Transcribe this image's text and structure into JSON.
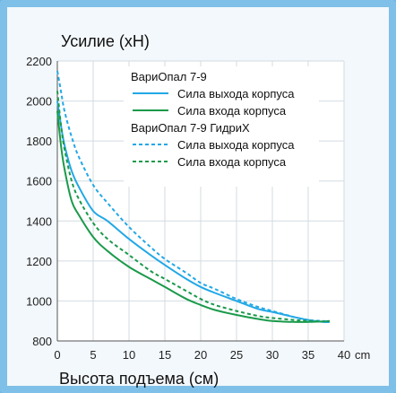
{
  "colors": {
    "exit": "#22a8e6",
    "entry": "#1a9a4a",
    "frame": "#7fc0e8",
    "background": "#f3f8fc"
  },
  "chart_data": {
    "type": "line",
    "ylabel": "Усилие (хН)",
    "xlabel": "Высота подъема (см)",
    "x_unit": "cm",
    "xlim": [
      0,
      40
    ],
    "ylim": [
      800,
      2200
    ],
    "x_ticks": [
      0,
      5,
      10,
      15,
      20,
      25,
      30,
      35,
      40
    ],
    "y_ticks": [
      800,
      1000,
      1200,
      1400,
      1600,
      1800,
      2000,
      2200
    ],
    "grid": true,
    "legend_position": "top-right",
    "legend_groups": [
      {
        "title": "ВариОпал 7-9",
        "series_indices": [
          0,
          1
        ]
      },
      {
        "title": "ВариОпал 7-9 ГидриХ",
        "series_indices": [
          2,
          3
        ]
      }
    ],
    "series": [
      {
        "name": "Сила выхода корпуса",
        "style": "solid",
        "color": "#22a8e6",
        "x": [
          0,
          0.5,
          1,
          2,
          3,
          5,
          7,
          10,
          13,
          15,
          18,
          20,
          22,
          25,
          28,
          30,
          33,
          35,
          37,
          38
        ],
        "y": [
          2000,
          1880,
          1780,
          1650,
          1570,
          1450,
          1400,
          1310,
          1230,
          1180,
          1110,
          1070,
          1040,
          1000,
          960,
          945,
          920,
          905,
          895,
          895
        ]
      },
      {
        "name": "Сила входа корпуса",
        "style": "solid",
        "color": "#1a9a4a",
        "x": [
          0,
          0.5,
          1,
          2,
          3,
          5,
          7,
          10,
          13,
          15,
          18,
          20,
          22,
          25,
          28,
          30,
          33,
          35,
          37,
          38
        ],
        "y": [
          1950,
          1780,
          1660,
          1500,
          1430,
          1320,
          1250,
          1170,
          1110,
          1070,
          1010,
          980,
          955,
          930,
          910,
          900,
          895,
          895,
          898,
          900
        ]
      },
      {
        "name": "Сила выхода корпуса",
        "style": "dashed",
        "color": "#22a8e6",
        "x": [
          0,
          0.5,
          1,
          2,
          3,
          5,
          7,
          10,
          13,
          15,
          18,
          20,
          22,
          25,
          28,
          30,
          33,
          35,
          37,
          38
        ],
        "y": [
          2150,
          2050,
          1950,
          1820,
          1720,
          1580,
          1490,
          1370,
          1270,
          1210,
          1140,
          1090,
          1060,
          1010,
          970,
          950,
          920,
          905,
          900,
          898
        ]
      },
      {
        "name": "Сила входа корпуса",
        "style": "dashed",
        "color": "#1a9a4a",
        "x": [
          0,
          0.5,
          1,
          2,
          3,
          5,
          7,
          10,
          13,
          15,
          18,
          20,
          22,
          25,
          28,
          30,
          33,
          35,
          37,
          38
        ],
        "y": [
          2050,
          1880,
          1760,
          1600,
          1510,
          1390,
          1310,
          1230,
          1150,
          1110,
          1050,
          1010,
          980,
          950,
          925,
          915,
          905,
          900,
          898,
          898
        ]
      }
    ]
  }
}
